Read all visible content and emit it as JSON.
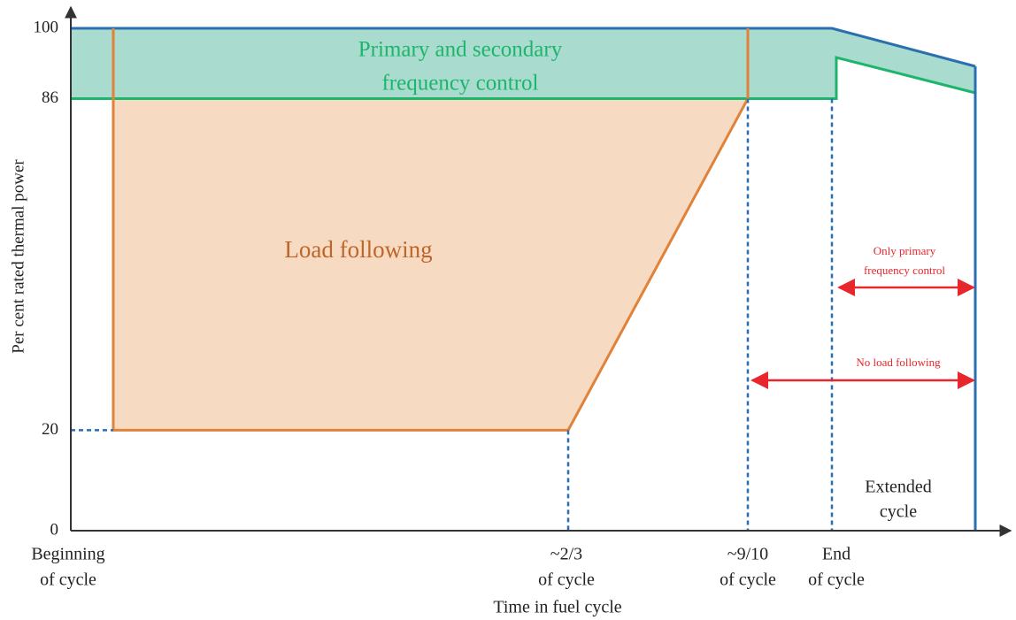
{
  "y_axis": {
    "label": "Per cent rated thermal power",
    "ticks": [
      0,
      20,
      86,
      100
    ]
  },
  "x_axis": {
    "label": "Time in fuel cycle",
    "ticks": [
      [
        "Beginning",
        "of cycle"
      ],
      [
        "~2/3",
        "of cycle"
      ],
      [
        "~9/10",
        "of cycle"
      ],
      [
        "End",
        "of cycle"
      ]
    ]
  },
  "regions": {
    "frequency_control": [
      "Primary and secondary",
      "frequency control"
    ],
    "load_following": "Load following",
    "only_primary": [
      "Only primary",
      "frequency control"
    ],
    "no_load_following": "No load following",
    "extended_cycle": [
      "Extended",
      "cycle"
    ]
  }
}
